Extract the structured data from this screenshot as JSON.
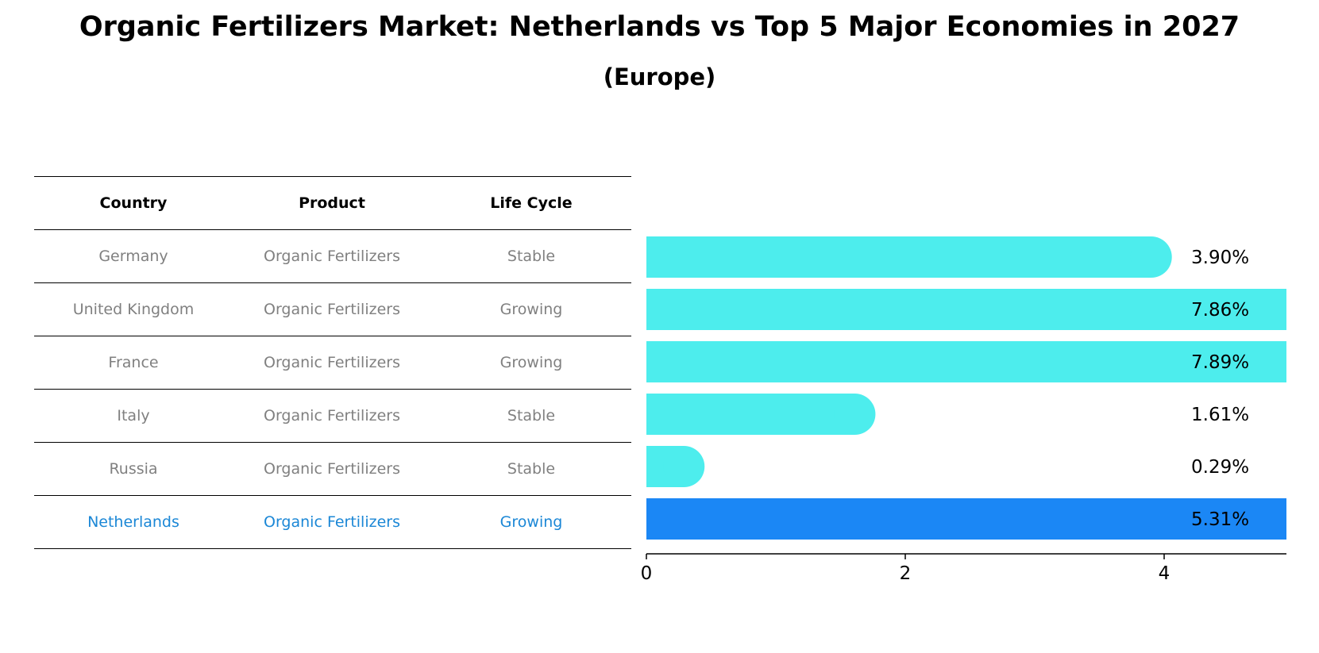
{
  "title": "Organic Fertilizers Market: Netherlands vs Top 5 Major Economies in 2027",
  "subtitle": "(Europe)",
  "table": {
    "headers": [
      "Country",
      "Product",
      "Life Cycle"
    ],
    "rows": [
      {
        "country": "Germany",
        "product": "Organic Fertilizers",
        "life_cycle": "Stable"
      },
      {
        "country": "United Kingdom",
        "product": "Organic Fertilizers",
        "life_cycle": "Growing"
      },
      {
        "country": "France",
        "product": "Organic Fertilizers",
        "life_cycle": "Growing"
      },
      {
        "country": "Italy",
        "product": "Organic Fertilizers",
        "life_cycle": "Stable"
      },
      {
        "country": "Russia",
        "product": "Organic Fertilizers",
        "life_cycle": "Stable"
      },
      {
        "country": "Netherlands",
        "product": "Organic Fertilizers",
        "life_cycle": "Growing"
      }
    ],
    "highlight_color": "#1b87d6",
    "text_color": "#808080"
  },
  "chart_data": {
    "type": "bar",
    "orientation": "horizontal",
    "categories": [
      "Germany",
      "United Kingdom",
      "France",
      "Italy",
      "Russia",
      "Netherlands"
    ],
    "values": [
      3.9,
      7.86,
      7.89,
      1.61,
      0.29,
      5.31
    ],
    "value_labels": [
      "3.90%",
      "7.86%",
      "7.89%",
      "1.61%",
      "0.29%",
      "5.31%"
    ],
    "xlim": [
      0,
      8.3
    ],
    "xticks": [
      0,
      2,
      4,
      6,
      8
    ],
    "colors": [
      "#4deded",
      "#4deded",
      "#4deded",
      "#4deded",
      "#4deded",
      "#1b87f5"
    ],
    "grid": false
  }
}
